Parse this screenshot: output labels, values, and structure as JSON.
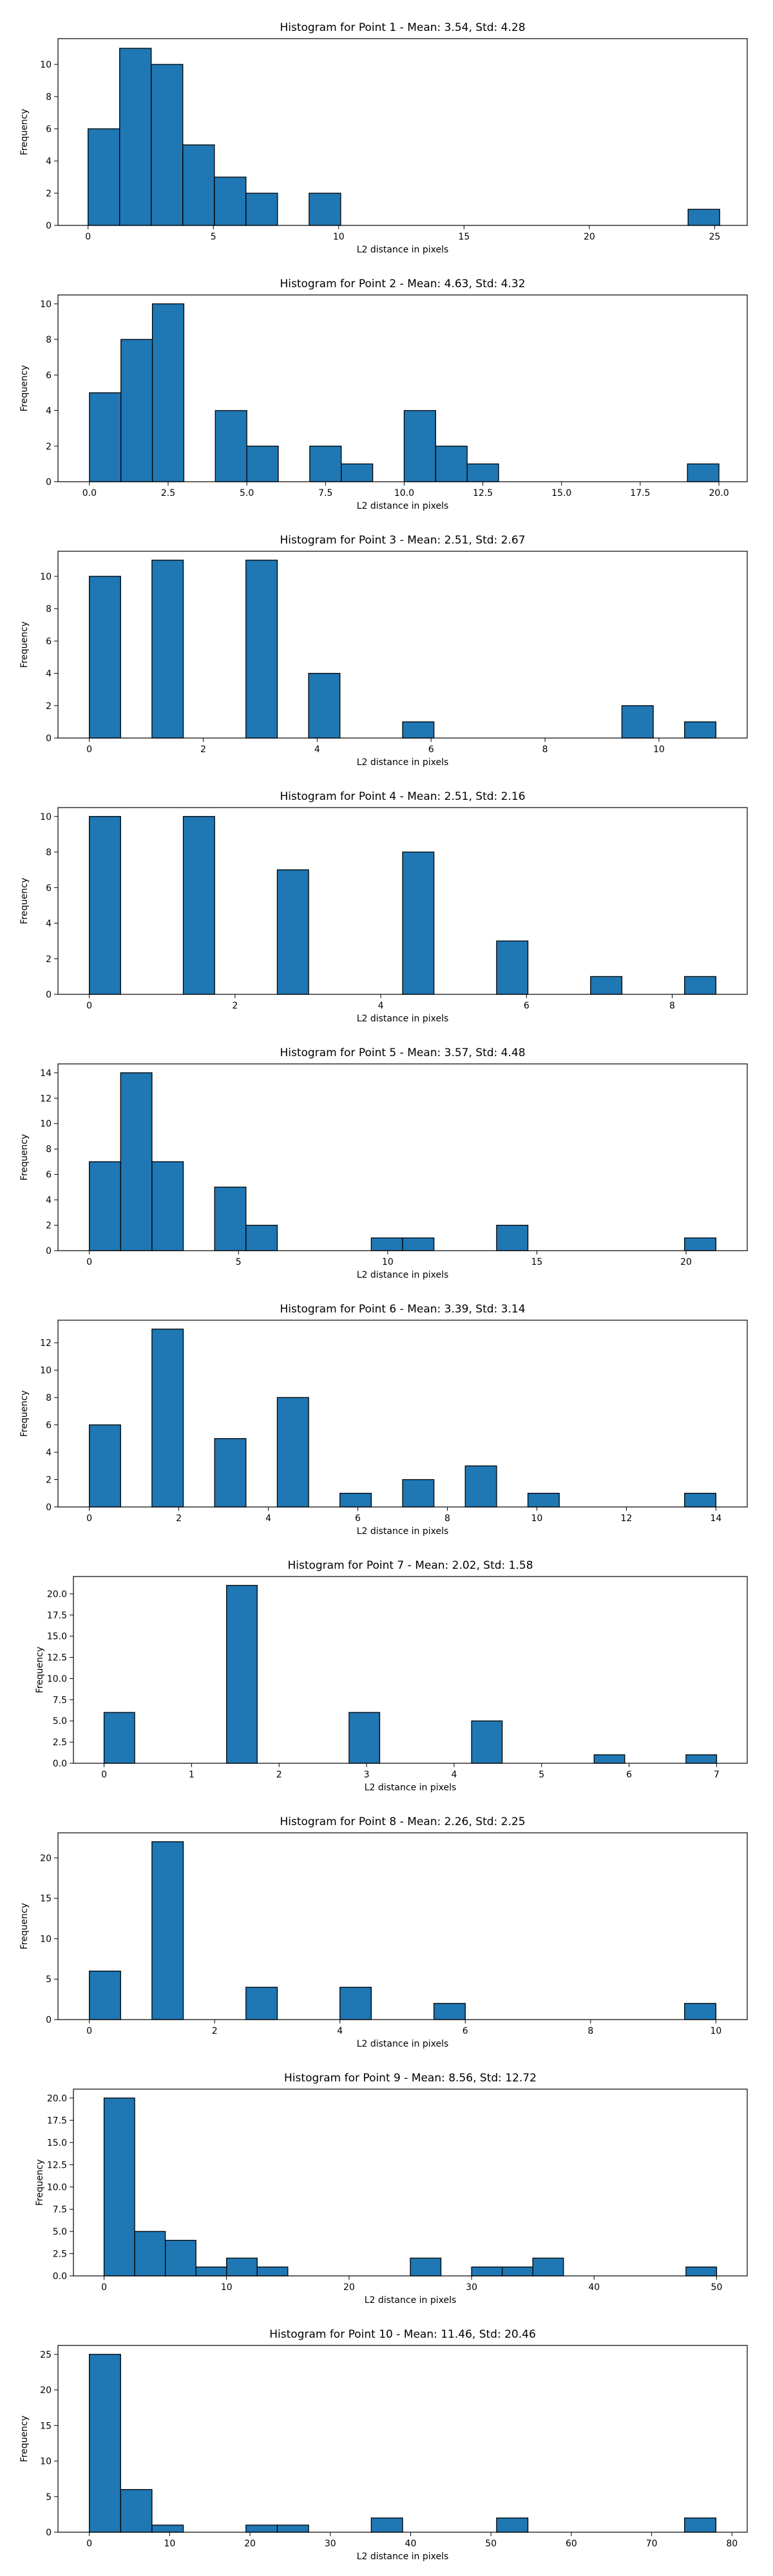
{
  "figure": {
    "colors": {
      "bar_fill": "#1f77b4",
      "bar_edge": "#000000",
      "axis": "#000000"
    },
    "xlabel": "L2 distance in pixels",
    "ylabel": "Frequency"
  },
  "chart_data": [
    {
      "type": "bar",
      "title": "Histogram for Point 1 - Mean: 3.54, Std: 4.28",
      "xlabel": "L2 distance in pixels",
      "ylabel": "Frequency",
      "xlim": [
        -1.2,
        26.3
      ],
      "ylim": [
        0,
        11.6
      ],
      "xticks": [
        0,
        5,
        10,
        15,
        20,
        25
      ],
      "xtick_labels": [
        "0",
        "5",
        "10",
        "15",
        "20",
        "25"
      ],
      "yticks": [
        0,
        2,
        4,
        6,
        8,
        10
      ],
      "ytick_labels": [
        "0",
        "2",
        "4",
        "6",
        "8",
        "10"
      ],
      "bins": [
        [
          0,
          1.26,
          6
        ],
        [
          1.26,
          2.52,
          11
        ],
        [
          2.52,
          3.78,
          10
        ],
        [
          3.78,
          5.04,
          5
        ],
        [
          5.04,
          6.3,
          3
        ],
        [
          6.3,
          7.56,
          2
        ],
        [
          8.82,
          10.08,
          2
        ],
        [
          23.94,
          25.2,
          1
        ]
      ],
      "grid": false
    },
    {
      "type": "bar",
      "title": "Histogram for Point 2 - Mean: 4.63, Std: 4.32",
      "xlabel": "L2 distance in pixels",
      "ylabel": "Frequency",
      "xlim": [
        -1.0,
        20.9
      ],
      "ylim": [
        0,
        10.5
      ],
      "xticks": [
        0,
        2.5,
        5,
        7.5,
        10,
        12.5,
        15,
        17.5,
        20
      ],
      "xtick_labels": [
        "0.0",
        "2.5",
        "5.0",
        "7.5",
        "10.0",
        "12.5",
        "15.0",
        "17.5",
        "20.0"
      ],
      "yticks": [
        0,
        2,
        4,
        6,
        8,
        10
      ],
      "ytick_labels": [
        "0",
        "2",
        "4",
        "6",
        "8",
        "10"
      ],
      "bins": [
        [
          0,
          1,
          5
        ],
        [
          1,
          2,
          8
        ],
        [
          2,
          3,
          10
        ],
        [
          4,
          5,
          4
        ],
        [
          5,
          6,
          2
        ],
        [
          7,
          8,
          2
        ],
        [
          8,
          9,
          1
        ],
        [
          10,
          11,
          4
        ],
        [
          11,
          12,
          2
        ],
        [
          12,
          13,
          1
        ],
        [
          19,
          20,
          1
        ]
      ],
      "grid": false
    },
    {
      "type": "bar",
      "title": "Histogram for Point 3 - Mean: 2.51, Std: 2.67",
      "xlabel": "L2 distance in pixels",
      "ylabel": "Frequency",
      "xlim": [
        -0.55,
        11.55
      ],
      "ylim": [
        0,
        11.55
      ],
      "xticks": [
        0,
        2,
        4,
        6,
        8,
        10
      ],
      "xtick_labels": [
        "0",
        "2",
        "4",
        "6",
        "8",
        "10"
      ],
      "yticks": [
        0,
        2,
        4,
        6,
        8,
        10
      ],
      "ytick_labels": [
        "0",
        "2",
        "4",
        "6",
        "8",
        "10"
      ],
      "bins": [
        [
          0,
          0.55,
          10
        ],
        [
          1.1,
          1.65,
          11
        ],
        [
          2.75,
          3.3,
          11
        ],
        [
          3.85,
          4.4,
          4
        ],
        [
          5.5,
          6.05,
          1
        ],
        [
          9.35,
          9.9,
          2
        ],
        [
          10.45,
          11.0,
          1
        ]
      ],
      "grid": false
    },
    {
      "type": "bar",
      "title": "Histogram for Point 4 - Mean: 2.51, Std: 2.16",
      "xlabel": "L2 distance in pixels",
      "ylabel": "Frequency",
      "xlim": [
        -0.43,
        9.03
      ],
      "ylim": [
        0,
        10.5
      ],
      "xticks": [
        0,
        2,
        4,
        6,
        8
      ],
      "xtick_labels": [
        "0",
        "2",
        "4",
        "6",
        "8"
      ],
      "yticks": [
        0,
        2,
        4,
        6,
        8,
        10
      ],
      "ytick_labels": [
        "0",
        "2",
        "4",
        "6",
        "8",
        "10"
      ],
      "bins": [
        [
          0,
          0.43,
          10
        ],
        [
          1.29,
          1.72,
          10
        ],
        [
          2.58,
          3.01,
          7
        ],
        [
          4.3,
          4.73,
          8
        ],
        [
          5.59,
          6.02,
          3
        ],
        [
          6.88,
          7.31,
          1
        ],
        [
          8.17,
          8.6,
          1
        ]
      ],
      "grid": false
    },
    {
      "type": "bar",
      "title": "Histogram for Point 5 - Mean: 3.57, Std: 4.48",
      "xlabel": "L2 distance in pixels",
      "ylabel": "Frequency",
      "xlim": [
        -1.05,
        22.05
      ],
      "ylim": [
        0,
        14.7
      ],
      "xticks": [
        0,
        5,
        10,
        15,
        20
      ],
      "xtick_labels": [
        "0",
        "5",
        "10",
        "15",
        "20"
      ],
      "yticks": [
        0,
        2,
        4,
        6,
        8,
        10,
        12,
        14
      ],
      "ytick_labels": [
        "0",
        "2",
        "4",
        "6",
        "8",
        "10",
        "12",
        "14"
      ],
      "bins": [
        [
          0,
          1.05,
          7
        ],
        [
          1.05,
          2.1,
          14
        ],
        [
          2.1,
          3.15,
          7
        ],
        [
          4.2,
          5.25,
          5
        ],
        [
          5.25,
          6.3,
          2
        ],
        [
          9.45,
          10.5,
          1
        ],
        [
          10.5,
          11.55,
          1
        ],
        [
          13.65,
          14.7,
          2
        ],
        [
          19.95,
          21.0,
          1
        ]
      ],
      "grid": false
    },
    {
      "type": "bar",
      "title": "Histogram for Point 6 - Mean: 3.39, Std: 3.14",
      "xlabel": "L2 distance in pixels",
      "ylabel": "Frequency",
      "xlim": [
        -0.7,
        14.7
      ],
      "ylim": [
        0,
        13.65
      ],
      "xticks": [
        0,
        2,
        4,
        6,
        8,
        10,
        12,
        14
      ],
      "xtick_labels": [
        "0",
        "2",
        "4",
        "6",
        "8",
        "10",
        "12",
        "14"
      ],
      "yticks": [
        0,
        2,
        4,
        6,
        8,
        10,
        12
      ],
      "ytick_labels": [
        "0",
        "2",
        "4",
        "6",
        "8",
        "10",
        "12"
      ],
      "bins": [
        [
          0,
          0.7,
          6
        ],
        [
          1.4,
          2.1,
          13
        ],
        [
          2.8,
          3.5,
          5
        ],
        [
          4.2,
          4.9,
          8
        ],
        [
          5.6,
          6.3,
          1
        ],
        [
          7.0,
          7.7,
          2
        ],
        [
          8.4,
          9.1,
          3
        ],
        [
          9.8,
          10.5,
          1
        ],
        [
          13.3,
          14.0,
          1
        ]
      ],
      "grid": false
    },
    {
      "type": "bar",
      "title": "Histogram for Point 7 - Mean: 2.02, Std: 1.58",
      "xlabel": "L2 distance in pixels",
      "ylabel": "Frequency",
      "xlim": [
        -0.35,
        7.35
      ],
      "ylim": [
        0,
        22.05
      ],
      "xticks": [
        0,
        1,
        2,
        3,
        4,
        5,
        6,
        7
      ],
      "xtick_labels": [
        "0",
        "1",
        "2",
        "3",
        "4",
        "5",
        "6",
        "7"
      ],
      "yticks": [
        0,
        2.5,
        5,
        7.5,
        10,
        12.5,
        15,
        17.5,
        20
      ],
      "ytick_labels": [
        "0.0",
        "2.5",
        "5.0",
        "7.5",
        "10.0",
        "12.5",
        "15.0",
        "17.5",
        "20.0"
      ],
      "bins": [
        [
          0,
          0.35,
          6
        ],
        [
          1.4,
          1.75,
          21
        ],
        [
          2.8,
          3.15,
          6
        ],
        [
          4.2,
          4.55,
          5
        ],
        [
          5.6,
          5.95,
          1
        ],
        [
          6.65,
          7.0,
          1
        ]
      ],
      "grid": false
    },
    {
      "type": "bar",
      "title": "Histogram for Point 8 - Mean: 2.26, Std: 2.25",
      "xlabel": "L2 distance in pixels",
      "ylabel": "Frequency",
      "xlim": [
        -0.5,
        10.5
      ],
      "ylim": [
        0,
        23.1
      ],
      "xticks": [
        0,
        2,
        4,
        6,
        8,
        10
      ],
      "xtick_labels": [
        "0",
        "2",
        "4",
        "6",
        "8",
        "10"
      ],
      "yticks": [
        0,
        5,
        10,
        15,
        20
      ],
      "ytick_labels": [
        "0",
        "5",
        "10",
        "15",
        "20"
      ],
      "bins": [
        [
          0,
          0.5,
          6
        ],
        [
          1.0,
          1.5,
          22
        ],
        [
          2.5,
          3.0,
          4
        ],
        [
          4.0,
          4.5,
          4
        ],
        [
          5.5,
          6.0,
          2
        ],
        [
          9.5,
          10.0,
          2
        ]
      ],
      "grid": false
    },
    {
      "type": "bar",
      "title": "Histogram for Point 9 - Mean: 8.56, Std: 12.72",
      "xlabel": "L2 distance in pixels",
      "ylabel": "Frequency",
      "xlim": [
        -2.5,
        52.5
      ],
      "ylim": [
        0,
        21
      ],
      "xticks": [
        0,
        10,
        20,
        30,
        40,
        50
      ],
      "xtick_labels": [
        "0",
        "10",
        "20",
        "30",
        "40",
        "50"
      ],
      "yticks": [
        0,
        2.5,
        5,
        7.5,
        10,
        12.5,
        15,
        17.5,
        20
      ],
      "ytick_labels": [
        "0.0",
        "2.5",
        "5.0",
        "7.5",
        "10.0",
        "12.5",
        "15.0",
        "17.5",
        "20.0"
      ],
      "bins": [
        [
          0,
          2.5,
          20
        ],
        [
          2.5,
          5,
          5
        ],
        [
          5,
          7.5,
          4
        ],
        [
          7.5,
          10,
          1
        ],
        [
          10,
          12.5,
          2
        ],
        [
          12.5,
          15,
          1
        ],
        [
          25,
          27.5,
          2
        ],
        [
          30,
          32.5,
          1
        ],
        [
          32.5,
          35,
          1
        ],
        [
          35,
          37.5,
          2
        ],
        [
          47.5,
          50,
          1
        ]
      ],
      "grid": false
    },
    {
      "type": "bar",
      "title": "Histogram for Point 10 - Mean: 11.46, Std: 20.46",
      "xlabel": "L2 distance in pixels",
      "ylabel": "Frequency",
      "xlim": [
        -3.9,
        81.9
      ],
      "ylim": [
        0,
        26.25
      ],
      "xticks": [
        0,
        10,
        20,
        30,
        40,
        50,
        60,
        70,
        80
      ],
      "xtick_labels": [
        "0",
        "10",
        "20",
        "30",
        "40",
        "50",
        "60",
        "70",
        "80"
      ],
      "yticks": [
        0,
        5,
        10,
        15,
        20,
        25
      ],
      "ytick_labels": [
        "0",
        "5",
        "10",
        "15",
        "20",
        "25"
      ],
      "bins": [
        [
          0,
          3.9,
          25
        ],
        [
          3.9,
          7.8,
          6
        ],
        [
          7.8,
          11.7,
          1
        ],
        [
          19.5,
          23.4,
          1
        ],
        [
          23.4,
          27.3,
          1
        ],
        [
          35.1,
          39.0,
          2
        ],
        [
          50.7,
          54.6,
          2
        ],
        [
          74.1,
          78.0,
          2
        ]
      ],
      "grid": false
    }
  ]
}
